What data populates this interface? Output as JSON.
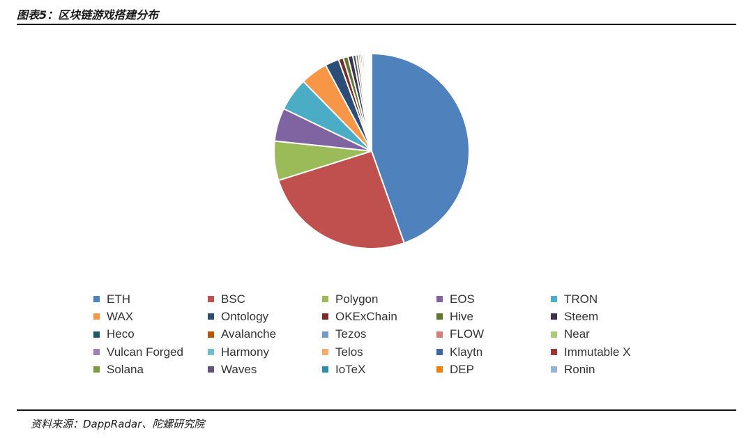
{
  "figure": {
    "title": "图表5：区块链游戏搭建分布",
    "source": "资料来源：DappRadar、陀螺研究院"
  },
  "chart_data": {
    "type": "pie",
    "title": "",
    "legend_position": "bottom",
    "slices": [
      {
        "label": "ETH",
        "value": 44.5,
        "color": "#4f81bd"
      },
      {
        "label": "BSC",
        "value": 25.5,
        "color": "#c0504d"
      },
      {
        "label": "Polygon",
        "value": 6.5,
        "color": "#9bbb59"
      },
      {
        "label": "EOS",
        "value": 5.5,
        "color": "#8064a2"
      },
      {
        "label": "TRON",
        "value": 5.5,
        "color": "#4bacc6"
      },
      {
        "label": "WAX",
        "value": 4.5,
        "color": "#f79646"
      },
      {
        "label": "Ontology",
        "value": 2.3,
        "color": "#2c4d75"
      },
      {
        "label": "OKExChain",
        "value": 0.8,
        "color": "#772c2a"
      },
      {
        "label": "Hive",
        "value": 0.8,
        "color": "#5f7530"
      },
      {
        "label": "Steem",
        "value": 0.8,
        "color": "#403151"
      },
      {
        "label": "Heco",
        "value": 0.5,
        "color": "#215968"
      },
      {
        "label": "Avalanche",
        "value": 0.4,
        "color": "#b65708"
      },
      {
        "label": "Tezos",
        "value": 0.3,
        "color": "#729aca"
      },
      {
        "label": "FLOW",
        "value": 0.3,
        "color": "#d9797a"
      },
      {
        "label": "Near",
        "value": 0.3,
        "color": "#afc97a"
      },
      {
        "label": "Vulcan Forged",
        "value": 0.2,
        "color": "#9983b5"
      },
      {
        "label": "Harmony",
        "value": 0.2,
        "color": "#6fbdd1"
      },
      {
        "label": "Telos",
        "value": 0.2,
        "color": "#f9ab6b"
      },
      {
        "label": "Klaytn",
        "value": 0.1,
        "color": "#3a679c"
      },
      {
        "label": "Immutable X",
        "value": 0.1,
        "color": "#9c3936"
      },
      {
        "label": "Solana",
        "value": 0.1,
        "color": "#7e9a40"
      },
      {
        "label": "Waves",
        "value": 0.1,
        "color": "#66507f"
      },
      {
        "label": "IoTeX",
        "value": 0.1,
        "color": "#2f8da5"
      },
      {
        "label": "DEP",
        "value": 0.1,
        "color": "#f07f09"
      },
      {
        "label": "Ronin",
        "value": 0.1,
        "color": "#95b3d7"
      }
    ]
  }
}
